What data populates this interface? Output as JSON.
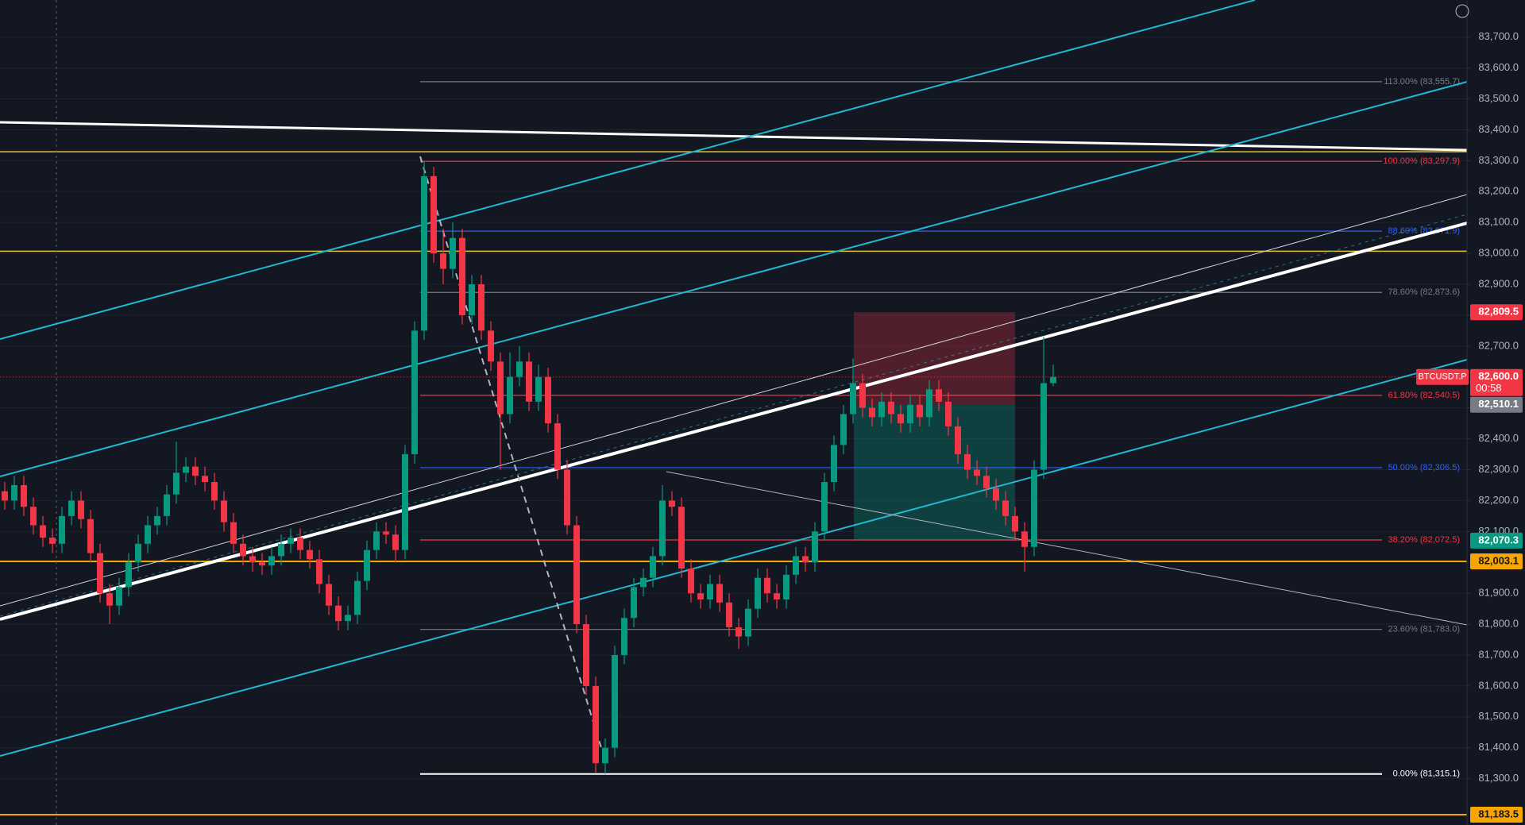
{
  "chart_data": {
    "type": "candlestick",
    "symbol": "BTCUSDT.P",
    "countdown": "00:58",
    "up_color": "#089981",
    "down_color": "#f23645",
    "open": [
      82230,
      82200,
      82250,
      82180,
      82120,
      82080,
      82060,
      82150,
      82200,
      82140,
      82030,
      81900,
      81860,
      81920,
      82000,
      82060,
      82120,
      82150,
      82220,
      82290,
      82310,
      82280,
      82260,
      82200,
      82130,
      82060,
      82020,
      82000,
      81990,
      82020,
      82060,
      82080,
      82040,
      82010,
      81930,
      81860,
      81810,
      81830,
      81940,
      82040,
      82100,
      82090,
      82040,
      82350,
      82750,
      83250,
      83000,
      82950,
      83050,
      82800,
      82900,
      82750,
      82650,
      82480,
      82600,
      82650,
      82520,
      82600,
      82450,
      82300,
      82120,
      81800,
      81600,
      81350,
      81400,
      81700,
      81820,
      81920,
      81950,
      82020,
      82200,
      82180,
      81980,
      81900,
      81880,
      81930,
      81870,
      81790,
      81760,
      81850,
      81950,
      81900,
      81880,
      81960,
      82020,
      82000,
      82100,
      82260,
      82380,
      82480,
      82580,
      82500,
      82470,
      82520,
      82480,
      82450,
      82510,
      82470,
      82560,
      82520,
      82440,
      82350,
      82300,
      82280,
      82240,
      82200,
      82150,
      82100,
      82050,
      82300,
      82580
    ],
    "high": [
      82260,
      82280,
      82280,
      82210,
      82150,
      82110,
      82180,
      82230,
      82230,
      82170,
      82060,
      81930,
      81950,
      82030,
      82090,
      82150,
      82180,
      82250,
      82390,
      82340,
      82340,
      82310,
      82290,
      82230,
      82160,
      82090,
      82050,
      82030,
      82050,
      82090,
      82110,
      82110,
      82070,
      82040,
      81960,
      81890,
      81860,
      81970,
      82070,
      82130,
      82130,
      82120,
      82380,
      82780,
      83297.9,
      83280,
      83080,
      83100,
      83080,
      82930,
      82930,
      82780,
      82680,
      82680,
      82700,
      82680,
      82640,
      82630,
      82480,
      82330,
      82150,
      81830,
      81630,
      81430,
      81730,
      81850,
      81950,
      81980,
      82050,
      82250,
      82230,
      82210,
      82010,
      81930,
      81960,
      81960,
      81900,
      81820,
      81880,
      81980,
      81980,
      81930,
      81990,
      82050,
      82050,
      82130,
      82290,
      82410,
      82510,
      82660,
      82610,
      82530,
      82550,
      82550,
      82510,
      82540,
      82540,
      82590,
      82590,
      82550,
      82470,
      82380,
      82330,
      82310,
      82270,
      82230,
      82180,
      82130,
      82330,
      82730,
      82640
    ],
    "low": [
      82170,
      82170,
      82150,
      82090,
      82050,
      82030,
      82030,
      82120,
      82110,
      82000,
      81870,
      81800,
      81830,
      81890,
      81970,
      82030,
      82090,
      82120,
      82190,
      82260,
      82250,
      82230,
      82170,
      82100,
      82030,
      81990,
      81970,
      81960,
      81960,
      81990,
      82030,
      82010,
      81980,
      81900,
      81830,
      81780,
      81780,
      81800,
      81910,
      82010,
      82060,
      82000,
      82010,
      82320,
      82720,
      82970,
      82900,
      82920,
      82770,
      82770,
      82720,
      82620,
      82300,
      82450,
      82570,
      82490,
      82490,
      82420,
      82270,
      82090,
      81770,
      81570,
      81320,
      81315.1,
      81370,
      81670,
      81790,
      81890,
      81920,
      81990,
      82150,
      81950,
      81870,
      81850,
      81850,
      81840,
      81760,
      81720,
      81730,
      81820,
      81870,
      81850,
      81850,
      81930,
      81970,
      81970,
      82070,
      82230,
      82350,
      82450,
      82470,
      82440,
      82440,
      82450,
      82420,
      82420,
      82440,
      82440,
      82490,
      82410,
      82320,
      82270,
      82250,
      82210,
      82170,
      82120,
      82070,
      81970,
      82020,
      82270,
      82570
    ],
    "close": [
      82200,
      82250,
      82180,
      82120,
      82080,
      82060,
      82150,
      82200,
      82140,
      82030,
      81900,
      81860,
      81920,
      82000,
      82060,
      82120,
      82150,
      82220,
      82290,
      82310,
      82280,
      82260,
      82200,
      82130,
      82060,
      82020,
      82000,
      81990,
      82020,
      82060,
      82080,
      82040,
      82010,
      81930,
      81860,
      81810,
      81830,
      81940,
      82040,
      82100,
      82090,
      82040,
      82350,
      82750,
      83250,
      83000,
      82950,
      83050,
      82800,
      82900,
      82750,
      82650,
      82480,
      82600,
      82650,
      82520,
      82600,
      82450,
      82300,
      82120,
      81800,
      81600,
      81350,
      81400,
      81700,
      81820,
      81920,
      81950,
      82020,
      82200,
      82180,
      81980,
      81900,
      81880,
      81930,
      81870,
      81790,
      81760,
      81850,
      81950,
      81900,
      81880,
      81960,
      82020,
      82000,
      82100,
      82260,
      82380,
      82480,
      82580,
      82500,
      82470,
      82520,
      82480,
      82450,
      82510,
      82470,
      82560,
      82520,
      82440,
      82350,
      82300,
      82280,
      82240,
      82200,
      82150,
      82100,
      82050,
      82300,
      82580,
      82600
    ],
    "ylim": [
      81150,
      83820
    ],
    "yticks": [
      {
        "value": 81300,
        "label": "81,300.0"
      },
      {
        "value": 81400,
        "label": "81,400.0"
      },
      {
        "value": 81500,
        "label": "81,500.0"
      },
      {
        "value": 81600,
        "label": "81,600.0"
      },
      {
        "value": 81700,
        "label": "81,700.0"
      },
      {
        "value": 81800,
        "label": "81,800.0"
      },
      {
        "value": 81900,
        "label": "81,900.0"
      },
      {
        "value": 82000,
        "label": "82,000.0"
      },
      {
        "value": 82100,
        "label": "82,100.0"
      },
      {
        "value": 82200,
        "label": "82,200.0"
      },
      {
        "value": 82300,
        "label": "82,300.0"
      },
      {
        "value": 82400,
        "label": "82,400.0"
      },
      {
        "value": 82500,
        "label": "82,500.0"
      },
      {
        "value": 82600,
        "label": "82,600.0"
      },
      {
        "value": 82700,
        "label": "82,700.0"
      },
      {
        "value": 82800,
        "label": "82,800.0"
      },
      {
        "value": 82900,
        "label": "82,900.0"
      },
      {
        "value": 83000,
        "label": "83,000.0"
      },
      {
        "value": 83100,
        "label": "83,100.0"
      },
      {
        "value": 83200,
        "label": "83,200.0"
      },
      {
        "value": 83300,
        "label": "83,300.0"
      },
      {
        "value": 83400,
        "label": "83,400.0"
      },
      {
        "value": 83500,
        "label": "83,500.0"
      },
      {
        "value": 83600,
        "label": "83,600.0"
      },
      {
        "value": 83700,
        "label": "83,700.0"
      }
    ],
    "grid": true,
    "fib_levels": [
      {
        "label": "113.00% (83,555.7)",
        "value": 83555.7,
        "color": "#787b86"
      },
      {
        "label": "100.00% (83,297.9)",
        "value": 83297.9,
        "color": "#f23645"
      },
      {
        "label": "88.60% (83,071.9)",
        "value": 83071.9,
        "color": "#2962ff"
      },
      {
        "label": "78.60% (82,873.6)",
        "value": 82873.6,
        "color": "#787b86"
      },
      {
        "label": "61.80% (82,540.5)",
        "value": 82540.5,
        "color": "#f23645"
      },
      {
        "label": "50.00% (82,306.5)",
        "value": 82306.5,
        "color": "#2962ff"
      },
      {
        "label": "38.20% (82,072.5)",
        "value": 82072.5,
        "color": "#f23645"
      },
      {
        "label": "23.60% (81,783.0)",
        "value": 81783.0,
        "color": "#787b86"
      },
      {
        "label": "0.00% (81,315.1)",
        "value": 81315.1,
        "color": "#ffffff"
      }
    ],
    "levels": [
      {
        "value": 83329,
        "color": "#e6c229"
      },
      {
        "value": 83007,
        "color": "#e6c229"
      }
    ],
    "price_labels": [
      {
        "value": 82809.5,
        "label": "82,809.5",
        "color": "#f23645"
      },
      {
        "value": 82600.0,
        "label": "82,600.0",
        "color": "#f23645"
      },
      {
        "value": 82510.1,
        "label": "82,510.1",
        "color": "#787b86"
      },
      {
        "value": 82070.3,
        "label": "82,070.3",
        "color": "#089981"
      },
      {
        "value": 82003.1,
        "label": "82,003.1",
        "color": "#f7a600"
      },
      {
        "value": 81183.5,
        "label": "81,183.5",
        "color": "#f7a600"
      }
    ]
  }
}
